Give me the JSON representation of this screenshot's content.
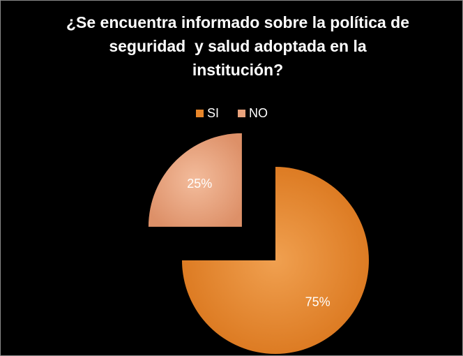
{
  "chart_data": {
    "type": "pie",
    "title": "¿Se encuentra informado sobre la política de seguridad  y salud adoptada en la institución?",
    "categories": [
      "SI",
      "NO"
    ],
    "values": [
      75,
      25
    ],
    "value_labels": [
      "75%",
      "25%"
    ],
    "colors": [
      "#e8862a",
      "#e9a27c"
    ],
    "legend": "top"
  }
}
